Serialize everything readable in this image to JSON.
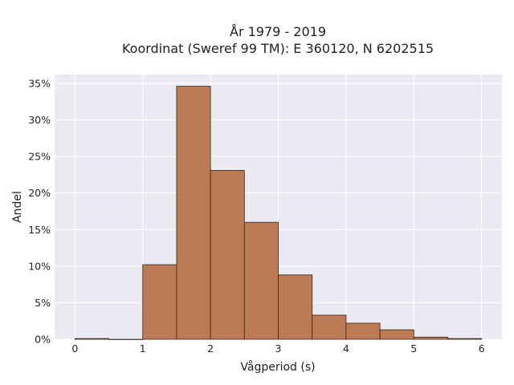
{
  "chart_data": {
    "type": "bar",
    "title_lines": [
      "År 1979 - 2019",
      "Koordinat (Sweref 99 TM): E 360120, N 6202515"
    ],
    "xlabel": "Vågperiod (s)",
    "ylabel": "Andel",
    "x_ticks": [
      "0",
      "1",
      "2",
      "3",
      "4",
      "5",
      "6"
    ],
    "y_ticks": [
      "0%",
      "5%",
      "10%",
      "15%",
      "20%",
      "25%",
      "30%",
      "35%"
    ],
    "xlim": [
      -0.3,
      6.3
    ],
    "ylim": [
      0,
      36.2
    ],
    "y_unit": "percent",
    "grid": true,
    "bins": [
      {
        "x0": 0.0,
        "x1": 0.5,
        "value": 0.1
      },
      {
        "x0": 0.5,
        "x1": 1.0,
        "value": 0.0
      },
      {
        "x0": 1.0,
        "x1": 1.5,
        "value": 10.2
      },
      {
        "x0": 1.5,
        "x1": 2.0,
        "value": 34.6
      },
      {
        "x0": 2.0,
        "x1": 2.5,
        "value": 23.1
      },
      {
        "x0": 2.5,
        "x1": 3.0,
        "value": 16.0
      },
      {
        "x0": 3.0,
        "x1": 3.5,
        "value": 8.8
      },
      {
        "x0": 3.5,
        "x1": 4.0,
        "value": 3.3
      },
      {
        "x0": 4.0,
        "x1": 4.5,
        "value": 2.2
      },
      {
        "x0": 4.5,
        "x1": 5.0,
        "value": 1.3
      },
      {
        "x0": 5.0,
        "x1": 5.5,
        "value": 0.3
      },
      {
        "x0": 5.5,
        "x1": 6.0,
        "value": 0.1
      }
    ],
    "colors": {
      "bar_fill": "#bc7a55",
      "bar_stroke": "#3b2418",
      "plot_background": "#eaeaf2",
      "grid": "#ffffff"
    }
  }
}
